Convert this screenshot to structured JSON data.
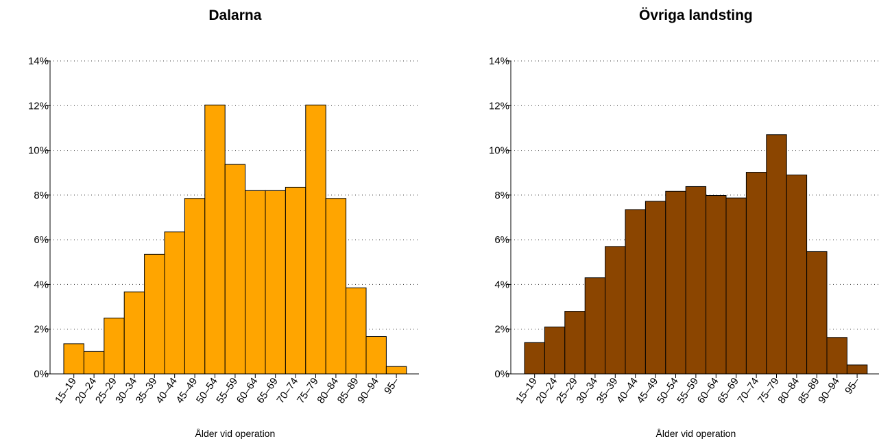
{
  "chart_data": [
    {
      "type": "bar",
      "title": "Dalarna",
      "xlabel": "Ålder vid operation",
      "ylabel": "",
      "ylim": [
        0,
        14
      ],
      "yticks": [
        "0%",
        "2%",
        "4%",
        "6%",
        "8%",
        "10%",
        "12%",
        "14%"
      ],
      "grid": "horizontal-dotted",
      "color": "#FFA500",
      "categories": [
        "15–19",
        "20–24",
        "25–29",
        "30–34",
        "35–39",
        "40–44",
        "45–49",
        "50–54",
        "55–59",
        "60–64",
        "65–69",
        "70–74",
        "75–79",
        "80–84",
        "85–89",
        "90–94",
        "95–"
      ],
      "values": [
        1.35,
        1.0,
        2.5,
        3.67,
        5.35,
        6.35,
        7.85,
        12.03,
        9.37,
        8.2,
        8.2,
        8.35,
        12.03,
        7.85,
        3.85,
        1.67,
        0.33
      ]
    },
    {
      "type": "bar",
      "title": "Övriga landsting",
      "xlabel": "Ålder vid operation",
      "ylabel": "",
      "ylim": [
        0,
        14
      ],
      "yticks": [
        "0%",
        "2%",
        "4%",
        "6%",
        "8%",
        "10%",
        "12%",
        "14%"
      ],
      "grid": "horizontal-dotted",
      "color": "#8B4500",
      "categories": [
        "15–19",
        "20–24",
        "25–29",
        "30–34",
        "35–39",
        "40–44",
        "45–49",
        "50–54",
        "55–59",
        "60–64",
        "65–69",
        "70–74",
        "75–79",
        "80–84",
        "85–89",
        "90–94",
        "95–"
      ],
      "values": [
        1.4,
        2.1,
        2.8,
        4.3,
        5.7,
        7.35,
        7.72,
        8.17,
        8.38,
        7.98,
        7.87,
        9.02,
        10.7,
        8.9,
        5.47,
        1.63,
        0.4
      ]
    }
  ]
}
